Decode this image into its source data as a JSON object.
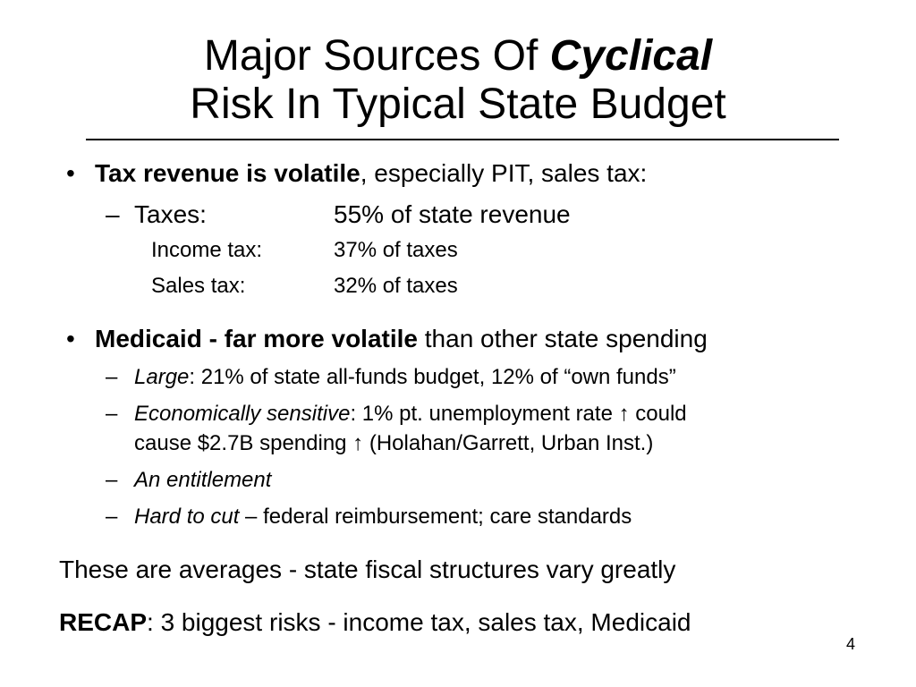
{
  "title": {
    "line1_prefix": "Major Sources Of ",
    "line1_emph": "Cyclical",
    "line2": "Risk In Typical State Budget"
  },
  "bullet_char": "•",
  "dash_char": "–",
  "tax": {
    "head_bold": "Tax revenue is volatile",
    "head_rest": ", especially PIT, sales tax:",
    "taxes_label": "Taxes:",
    "taxes_value": "55% of state revenue",
    "income_label": "Income tax:",
    "income_value": "37% of taxes",
    "sales_label": "Sales tax:",
    "sales_value": "32% of taxes"
  },
  "medicaid": {
    "head_bold": "Medicaid - far more volatile",
    "head_rest": " than other state spending",
    "items": [
      {
        "emph": "Large",
        "rest": ": 21% of state all-funds budget, 12% of “own funds”"
      },
      {
        "emph": "Economically sensitive",
        "rest": ": 1% pt. unemployment rate ↑ could",
        "cont": "cause $2.7B spending ↑ (Holahan/Garrett, Urban Inst.)"
      },
      {
        "emph": "An entitlement",
        "rest": ""
      },
      {
        "emph": "Hard to cut",
        "rest": " – federal reimbursement; care standards"
      }
    ]
  },
  "note": "These are averages - state fiscal structures vary greatly",
  "recap": {
    "bold": "RECAP",
    "rest": ": 3 biggest risks - income tax, sales tax, Medicaid"
  },
  "page_number": "4"
}
